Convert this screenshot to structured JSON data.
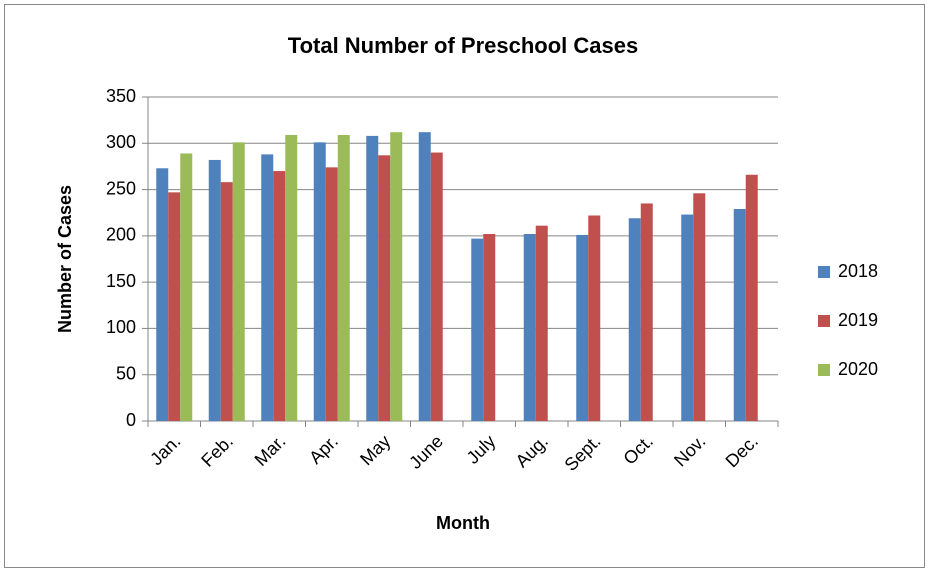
{
  "chart_data": {
    "type": "bar",
    "title": "Total Number of Preschool Cases",
    "x_label": "Month",
    "y_label": "Number of Cases",
    "categories": [
      "Jan.",
      "Feb.",
      "Mar.",
      "Apr.",
      "May",
      "June",
      "July",
      "Aug.",
      "Sept.",
      "Oct.",
      "Nov.",
      "Dec."
    ],
    "series": [
      {
        "name": "2018",
        "color": "#4f81bd",
        "values": [
          273,
          282,
          288,
          301,
          308,
          312,
          197,
          202,
          201,
          219,
          223,
          229
        ]
      },
      {
        "name": "2019",
        "color": "#c0504d",
        "values": [
          247,
          258,
          270,
          274,
          287,
          290,
          202,
          211,
          222,
          235,
          246,
          266
        ]
      },
      {
        "name": "2020",
        "color": "#9bbb59",
        "values": [
          289,
          301,
          309,
          309,
          312,
          null,
          null,
          null,
          null,
          null,
          null,
          null
        ]
      }
    ],
    "ylim": [
      0,
      350
    ],
    "yticks": [
      0,
      50,
      100,
      150,
      200,
      250,
      300,
      350
    ],
    "grid": true,
    "legend": "right"
  }
}
